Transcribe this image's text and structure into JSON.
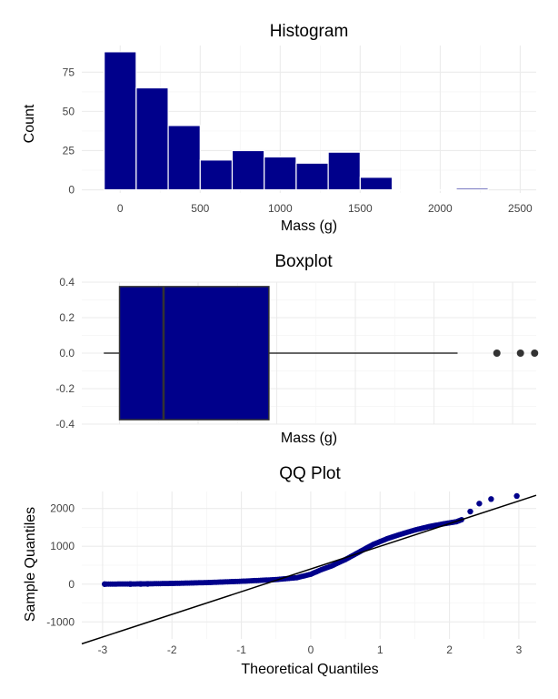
{
  "chart_data": [
    {
      "type": "bar",
      "title": "Histogram",
      "xlabel": "Mass (g)",
      "ylabel": "Count",
      "bar_color": "#00008b",
      "bin_edges": [
        -100,
        100,
        300,
        500,
        700,
        900,
        1100,
        1300,
        1500,
        1700,
        1900,
        2100,
        2300
      ],
      "values": [
        88,
        65,
        41,
        19,
        25,
        21,
        17,
        24,
        8,
        0,
        0,
        1
      ],
      "xlim": [
        -240,
        2600
      ],
      "ylim": [
        -2,
        92
      ],
      "xticks": [
        0,
        500,
        1000,
        1500,
        2000,
        2500
      ],
      "xtick_labels": [
        "0",
        "500",
        "1000",
        "1500",
        "2000",
        "2500"
      ],
      "yticks": [
        0,
        25,
        50,
        75
      ],
      "ytick_labels": [
        "0",
        "25",
        "50",
        "75"
      ],
      "grid": true
    },
    {
      "type": "boxplot",
      "title": "Boxplot",
      "xlabel": "Mass (g)",
      "box_color": "#00008b",
      "whisker_low": -100,
      "q1": 0,
      "median": 280,
      "q3": 950,
      "whisker_high": 2150,
      "outliers": [
        2400,
        2550,
        2640
      ],
      "xlim": [
        -240,
        2650
      ],
      "ylim": [
        -0.4,
        0.4
      ],
      "yticks": [
        -0.4,
        -0.2,
        0.0,
        0.2,
        0.4
      ],
      "ytick_labels": [
        "-0.4",
        "-0.2",
        "0.0",
        "0.2",
        "0.4"
      ],
      "grid": true
    },
    {
      "type": "scatter",
      "title": "QQ Plot",
      "xlabel": "Theoretical Quantiles",
      "ylabel": "Sample Quantiles",
      "point_color": "#00008b",
      "reference_line": {
        "intercept": 400,
        "slope": 600
      },
      "xlim": [
        -3.3,
        3.25
      ],
      "ylim": [
        -1450,
        2450
      ],
      "xticks": [
        -3,
        -2,
        -1,
        0,
        1,
        2,
        3
      ],
      "xtick_labels": [
        "-3",
        "-2",
        "-1",
        "0",
        "1",
        "2",
        "3"
      ],
      "yticks": [
        -1000,
        0,
        1000,
        2000
      ],
      "ytick_labels": [
        "-1000",
        "0",
        "1000",
        "2000"
      ],
      "grid": true,
      "quantile_curve": [
        [
          -2.97,
          0
        ],
        [
          -2.5,
          5
        ],
        [
          -2.0,
          18
        ],
        [
          -1.5,
          40
        ],
        [
          -1.0,
          75
        ],
        [
          -0.5,
          120
        ],
        [
          -0.2,
          170
        ],
        [
          0,
          260
        ],
        [
          0.15,
          380
        ],
        [
          0.3,
          480
        ],
        [
          0.5,
          650
        ],
        [
          0.7,
          850
        ],
        [
          0.9,
          1050
        ],
        [
          1.1,
          1200
        ],
        [
          1.3,
          1320
        ],
        [
          1.5,
          1430
        ],
        [
          1.7,
          1520
        ],
        [
          1.9,
          1590
        ],
        [
          2.1,
          1650
        ],
        [
          2.2,
          1720
        ]
      ],
      "tail_points": [
        {
          "x": -2.97,
          "y": 0
        },
        {
          "x": -2.6,
          "y": 2
        },
        {
          "x": -2.45,
          "y": 4
        },
        {
          "x": -2.35,
          "y": 6
        },
        {
          "x": 2.3,
          "y": 1920
        },
        {
          "x": 2.43,
          "y": 2130
        },
        {
          "x": 2.6,
          "y": 2250
        },
        {
          "x": 2.97,
          "y": 2330
        }
      ]
    }
  ]
}
